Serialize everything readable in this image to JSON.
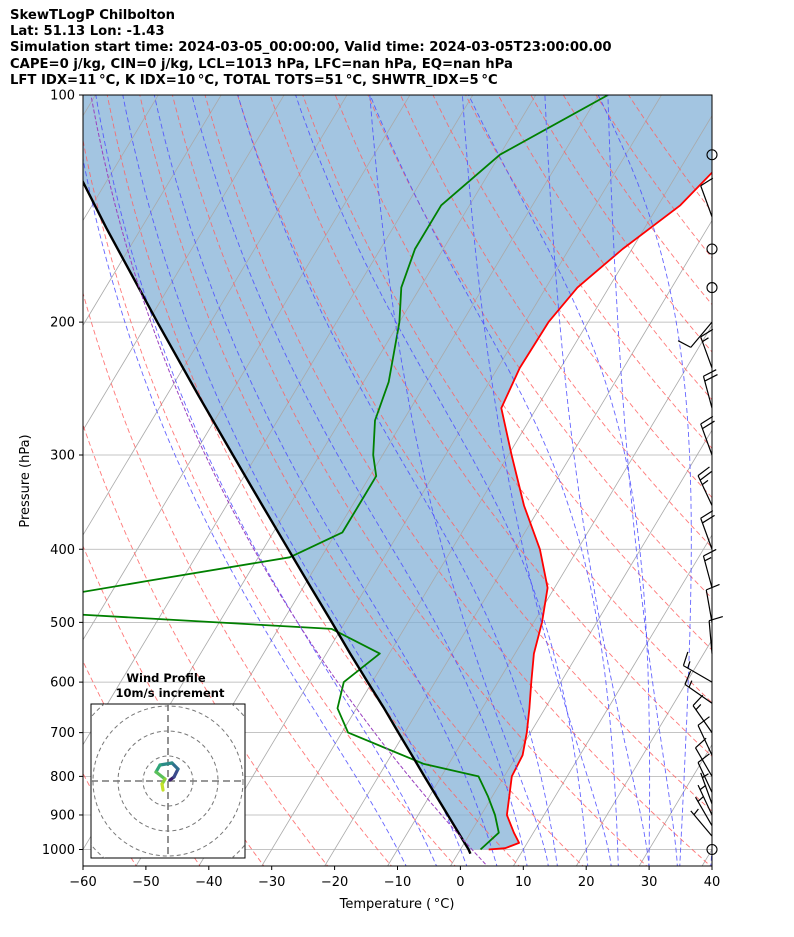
{
  "header": {
    "lines": [
      "SkewTLogP Chilbolton",
      "Lat: 51.13   Lon: -1.43",
      "Simulation start time: 2024-03-05_00:00:00, Valid time: 2024-03-05T23:00:00.00",
      "CAPE=0 j/kg, CIN=0 j/kg, LCL=1013 hPa, LFC=nan hPa, EQ=nan hPa",
      "LFT IDX=11 °C, K IDX=10 °C, TOTAL TOTS=51 °C, SHWTR_IDX=5 °C"
    ]
  },
  "chart_data": {
    "type": "skewt-logp",
    "title": "SkewTLogP Chilbolton",
    "xlabel": "Temperature ( °C)",
    "ylabel": "Pressure (hPa)",
    "xlim": [
      -60,
      40
    ],
    "ylim": [
      1050,
      100
    ],
    "x_ticks": [
      -60,
      -50,
      -40,
      -30,
      -20,
      -10,
      0,
      10,
      20,
      30,
      40
    ],
    "x_tick_labels": [
      "−60",
      "−50",
      "−40",
      "−30",
      "−20",
      "−10",
      "0",
      "10",
      "20",
      "30",
      "40"
    ],
    "y_ticks": [
      1000,
      900,
      800,
      700,
      600,
      500,
      400,
      300,
      200,
      100
    ],
    "y_tick_labels": [
      "1000",
      "900",
      "800",
      "700",
      "600",
      "500",
      "400",
      "300",
      "200",
      "100"
    ],
    "series": [
      {
        "name": "Temperature",
        "color": "#ff0000",
        "points": [
          [
            1000,
            4.5
          ],
          [
            996,
            7
          ],
          [
            980,
            8.7
          ],
          [
            950,
            6.9
          ],
          [
            900,
            4.1
          ],
          [
            850,
            2.7
          ],
          [
            800,
            1.2
          ],
          [
            750,
            0.9
          ],
          [
            700,
            -0.6
          ],
          [
            650,
            -2.5
          ],
          [
            600,
            -4.7
          ],
          [
            550,
            -7
          ],
          [
            500,
            -8.7
          ],
          [
            450,
            -11.1
          ],
          [
            400,
            -16
          ],
          [
            350,
            -22.7
          ],
          [
            300,
            -29.5
          ],
          [
            260,
            -35.6
          ],
          [
            230,
            -36.5
          ],
          [
            200,
            -36.3
          ],
          [
            180,
            -35
          ],
          [
            160,
            -31.5
          ],
          [
            140,
            -26.5
          ],
          [
            120,
            -23.5
          ],
          [
            110,
            -23
          ],
          [
            100,
            -18.6
          ]
        ]
      },
      {
        "name": "Dewpoint",
        "color": "#008000",
        "points": [
          [
            1000,
            3.2
          ],
          [
            950,
            4.5
          ],
          [
            900,
            2.2
          ],
          [
            850,
            -0.7
          ],
          [
            800,
            -4.1
          ],
          [
            770,
            -14
          ],
          [
            700,
            -29
          ],
          [
            650,
            -33
          ],
          [
            600,
            -34.5
          ],
          [
            550,
            -31.5
          ],
          [
            510,
            -41.5
          ],
          [
            480,
            -99
          ],
          [
            440,
            -75
          ],
          [
            410,
            -55
          ],
          [
            380,
            -49
          ],
          [
            350,
            -49
          ],
          [
            320,
            -49
          ],
          [
            300,
            -51.5
          ],
          [
            270,
            -54.5
          ],
          [
            240,
            -56
          ],
          [
            200,
            -60
          ],
          [
            180,
            -63
          ],
          [
            160,
            -64.5
          ],
          [
            140,
            -64.5
          ],
          [
            120,
            -60
          ],
          [
            100,
            -48.5
          ]
        ]
      },
      {
        "name": "Parcel profile",
        "color": "#000000",
        "points": [
          [
            1013,
            2.0
          ],
          [
            1000,
            1.3
          ],
          [
            950,
            -1.9
          ],
          [
            900,
            -5.3
          ],
          [
            850,
            -8.9
          ],
          [
            800,
            -12.7
          ],
          [
            750,
            -16.7
          ],
          [
            700,
            -21
          ],
          [
            650,
            -25.6
          ],
          [
            600,
            -30.7
          ],
          [
            550,
            -36.2
          ],
          [
            500,
            -42.1
          ],
          [
            450,
            -48.7
          ],
          [
            400,
            -56
          ],
          [
            350,
            -64.3
          ],
          [
            300,
            -73.8
          ],
          [
            250,
            -85
          ],
          [
            200,
            -98.5
          ],
          [
            150,
            -115.6
          ],
          [
            100,
            -139
          ]
        ]
      }
    ],
    "shaded_region": "area between temperature and parcel profile",
    "wind_barbs": [
      {
        "p": 1000,
        "speed_kt": 0
      },
      {
        "p": 960,
        "speed_kt": 5,
        "dir": 320
      },
      {
        "p": 930,
        "speed_kt": 5,
        "dir": 330
      },
      {
        "p": 900,
        "speed_kt": 5,
        "dir": 335
      },
      {
        "p": 870,
        "speed_kt": 5,
        "dir": 340
      },
      {
        "p": 840,
        "speed_kt": 10,
        "dir": 335
      },
      {
        "p": 800,
        "speed_kt": 10,
        "dir": 330
      },
      {
        "p": 750,
        "speed_kt": 10,
        "dir": 335
      },
      {
        "p": 700,
        "speed_kt": 15,
        "dir": 325
      },
      {
        "p": 640,
        "speed_kt": 15,
        "dir": 305
      },
      {
        "p": 600,
        "speed_kt": 15,
        "dir": 300
      },
      {
        "p": 550,
        "speed_kt": 10,
        "dir": 355
      },
      {
        "p": 500,
        "speed_kt": 10,
        "dir": 350
      },
      {
        "p": 450,
        "speed_kt": 15,
        "dir": 345
      },
      {
        "p": 400,
        "speed_kt": 20,
        "dir": 340
      },
      {
        "p": 350,
        "speed_kt": 25,
        "dir": 335
      },
      {
        "p": 300,
        "speed_kt": 20,
        "dir": 340
      },
      {
        "p": 260,
        "speed_kt": 20,
        "dir": 345
      },
      {
        "p": 230,
        "speed_kt": 15,
        "dir": 340
      },
      {
        "p": 200,
        "speed_kt": 10,
        "dir": 220
      },
      {
        "p": 180,
        "speed_kt": 0
      },
      {
        "p": 160,
        "speed_kt": 0
      },
      {
        "p": 145,
        "speed_kt": 10,
        "dir": 340
      },
      {
        "p": 120,
        "speed_kt": 0
      }
    ],
    "inset": {
      "title": "Wind Profile",
      "subtitle": "10m/s increment",
      "rings": 4,
      "hodograph": [
        [
          0.2,
          -0.1
        ],
        [
          0.6,
          -0.4
        ],
        [
          1.0,
          -1.2
        ],
        [
          0.4,
          -1.8
        ],
        [
          -0.8,
          -1.6
        ],
        [
          -1.2,
          -0.9
        ],
        [
          -0.3,
          -0.2
        ],
        [
          -0.6,
          0.3
        ],
        [
          -0.5,
          0.9
        ]
      ]
    }
  }
}
